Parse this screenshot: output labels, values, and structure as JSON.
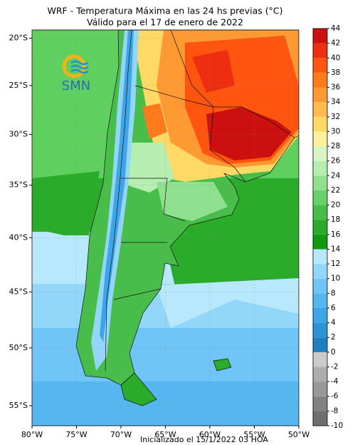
{
  "title": "WRF - Temperatura Máxima en las 24 hs previas (°C)",
  "subtitle": "Válido para el 17 de enero de 2022",
  "footer": "Inicializado el 15/1/2022 03 HOA",
  "logo": "SMN",
  "map": {
    "xlim": [
      -80,
      -50
    ],
    "ylim": [
      -56.7,
      -19.1
    ],
    "xticks": [
      {
        "value": -80,
        "label": "80°W"
      },
      {
        "value": -75,
        "label": "75°W"
      },
      {
        "value": -70,
        "label": "70°W"
      },
      {
        "value": -65,
        "label": "65°W"
      },
      {
        "value": -60,
        "label": "60°W"
      },
      {
        "value": -55,
        "label": "55°W"
      },
      {
        "value": -50,
        "label": "50°W"
      }
    ],
    "yticks": [
      {
        "value": -20,
        "label": "20°S"
      },
      {
        "value": -25,
        "label": "25°S"
      },
      {
        "value": -30,
        "label": "30°S"
      },
      {
        "value": -35,
        "label": "35°S"
      },
      {
        "value": -40,
        "label": "40°S"
      },
      {
        "value": -45,
        "label": "45°S"
      },
      {
        "value": -50,
        "label": "50°S"
      },
      {
        "value": -55,
        "label": "55°S"
      }
    ]
  },
  "colorbar": {
    "levels": [
      -10,
      -8,
      -6,
      -4,
      -2,
      0,
      2,
      4,
      6,
      8,
      10,
      12,
      14,
      16,
      18,
      20,
      22,
      24,
      26,
      28,
      30,
      32,
      34,
      36,
      38,
      40,
      42,
      44
    ],
    "colors": [
      "#6e6e6e",
      "#828282",
      "#989898",
      "#adadad",
      "#cbcbcb",
      "#1f7fbf",
      "#2c93d6",
      "#3ea6e8",
      "#55b6f0",
      "#6fc5f5",
      "#92d6f9",
      "#b8e8fc",
      "#0f9a12",
      "#2aab2a",
      "#49bd49",
      "#6ad06a",
      "#8fe08f",
      "#b6edb0",
      "#d9f5c3",
      "#fff09e",
      "#ffd966",
      "#ffb94d",
      "#ff9a33",
      "#ff7a1a",
      "#ff5510",
      "#ee2e10",
      "#cc1010"
    ]
  }
}
